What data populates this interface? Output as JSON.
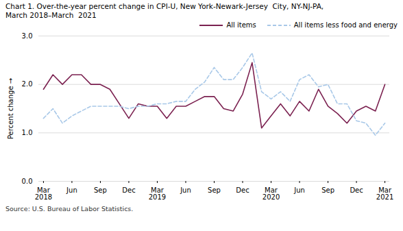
{
  "chart_data": {
    "type": "line",
    "title": "Chart 1. Over-the-year percent change in CPI-U, New York-Newark-Jersey  City, NY-NJ-PA,\nMarch 2018–March  2021",
    "ylabel": "Percent change",
    "caption": "Source: U.S. Bureau of Labor Statistics.",
    "legend": "upper right",
    "grid": true,
    "categories": [
      "Mar\n2018",
      null,
      null,
      "Jun",
      null,
      null,
      "Sep",
      null,
      null,
      "Dec",
      null,
      null,
      "Mar\n2019",
      null,
      null,
      "Jun",
      null,
      null,
      "Sep",
      null,
      null,
      "Dec",
      null,
      null,
      "Mar\n2020",
      null,
      null,
      "Jun",
      null,
      null,
      "Sep",
      null,
      null,
      "Dec",
      null,
      null,
      "Mar\n2021"
    ],
    "series": [
      {
        "name": "All items",
        "color": "#7b2150",
        "line_style": "solid",
        "values": [
          1.9,
          2.2,
          2.0,
          2.2,
          2.2,
          2.0,
          2.0,
          1.9,
          1.6,
          1.3,
          1.6,
          1.55,
          1.55,
          1.3,
          1.55,
          1.55,
          1.65,
          1.75,
          1.75,
          1.5,
          1.45,
          1.8,
          2.45,
          1.1,
          1.35,
          1.6,
          1.35,
          1.65,
          1.45,
          1.9,
          1.55,
          1.4,
          1.2,
          1.45,
          1.55,
          1.45,
          2.0
        ]
      },
      {
        "name": "All items less food and energy",
        "color": "#a8c8e8",
        "line_style": "dashed",
        "values": [
          1.3,
          1.5,
          1.2,
          1.35,
          1.45,
          1.55,
          1.55,
          1.55,
          1.55,
          1.5,
          1.55,
          1.55,
          1.6,
          1.6,
          1.65,
          1.65,
          1.9,
          2.05,
          2.35,
          2.1,
          2.1,
          2.35,
          2.65,
          1.85,
          1.7,
          1.85,
          1.65,
          2.1,
          2.2,
          1.95,
          2.0,
          1.6,
          1.6,
          1.25,
          1.2,
          0.95,
          1.2
        ]
      }
    ],
    "ylim": [
      0.0,
      3.0
    ],
    "yticks": [
      {
        "value": 0.0,
        "label": "0.0"
      },
      {
        "value": 1.0,
        "label": "1.0"
      },
      {
        "value": 2.0,
        "label": "2.0"
      },
      {
        "value": 3.0,
        "label": "3.0"
      }
    ]
  }
}
